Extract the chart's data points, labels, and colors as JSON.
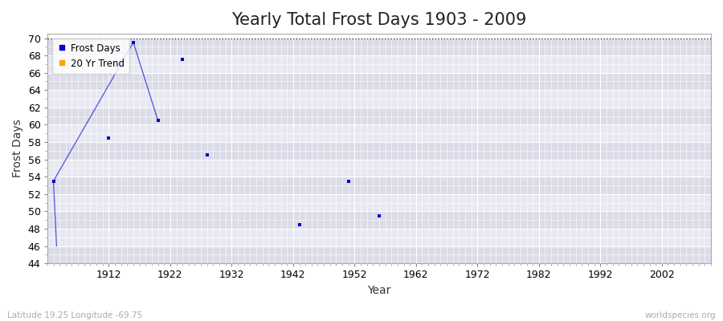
{
  "title": "Yearly Total Frost Days 1903 - 2009",
  "xlabel": "Year",
  "ylabel": "Frost Days",
  "xlim": [
    1902,
    2010
  ],
  "ylim": [
    44,
    70.5
  ],
  "yticks": [
    44,
    46,
    48,
    50,
    52,
    54,
    56,
    58,
    60,
    62,
    64,
    66,
    68,
    70
  ],
  "xticks": [
    1912,
    1922,
    1932,
    1942,
    1952,
    1962,
    1972,
    1982,
    1992,
    2002
  ],
  "frost_days_x": [
    1903,
    1912,
    1916,
    1920,
    1924,
    1928,
    1943,
    1951,
    1956
  ],
  "frost_days_y": [
    53.5,
    58.5,
    69.5,
    60.5,
    67.5,
    56.5,
    48.5,
    53.5,
    49.5
  ],
  "line_x": [
    1903,
    1916,
    1920
  ],
  "line_y": [
    53.5,
    69.5,
    60.5
  ],
  "data_color": "#0000cc",
  "trend_color": "#FFA500",
  "bg_color_dark": "#dcdce8",
  "bg_color_light": "#e8e8f2",
  "grid_color": "#ffffff",
  "hline_y": 70,
  "hline_color": "#333333",
  "subtitle_left": "Latitude 19.25 Longitude -69.75",
  "subtitle_right": "worldspecies.org",
  "title_fontsize": 15,
  "label_fontsize": 10,
  "tick_fontsize": 9
}
